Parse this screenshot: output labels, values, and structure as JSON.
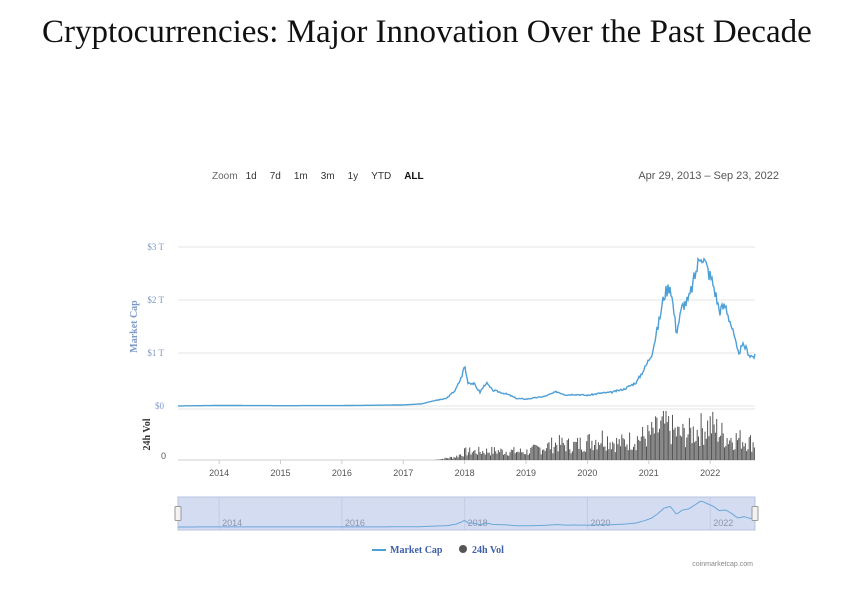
{
  "slide": {
    "title": "Cryptocurrencies: Major Innovation Over the Past Decade"
  },
  "toolbar": {
    "zoom_label": "Zoom",
    "buttons": [
      "1d",
      "7d",
      "1m",
      "3m",
      "1y",
      "YTD",
      "ALL"
    ],
    "active": "ALL"
  },
  "date_range": "Apr 29, 2013 – Sep 23, 2022",
  "credit": "coinmarketcap.com",
  "colors": {
    "market_cap": "#4e9fd6",
    "volume": "#555555",
    "navigator_bg": "#d4dcf2",
    "navigator_line": "#6aa6d8"
  },
  "chart_data": {
    "type": "area",
    "title": "",
    "ylabel": "Market Cap",
    "ylabel_secondary": "24h Vol",
    "yticks": [
      "$0",
      "$1 T",
      "$2 T",
      "$3 T"
    ],
    "ylim": [
      0,
      3
    ],
    "y2ticks": [
      "0"
    ],
    "xticks": [
      "2014",
      "2015",
      "2016",
      "2017",
      "2018",
      "2019",
      "2020",
      "2021",
      "2022"
    ],
    "xlim": [
      2013.33,
      2022.73
    ],
    "navigator_ticks": [
      "2014",
      "2016",
      "2018",
      "2020",
      "2022"
    ],
    "grid": true,
    "legend": "bottom-center",
    "series": [
      {
        "name": "Market Cap",
        "x": [
          2013.33,
          2014.0,
          2015.0,
          2016.0,
          2017.0,
          2017.3,
          2017.5,
          2017.7,
          2017.85,
          2017.95,
          2018.0,
          2018.05,
          2018.15,
          2018.25,
          2018.35,
          2018.45,
          2018.55,
          2018.7,
          2018.85,
          2019.0,
          2019.3,
          2019.5,
          2019.65,
          2019.8,
          2020.0,
          2020.2,
          2020.4,
          2020.6,
          2020.8,
          2020.95,
          2021.05,
          2021.15,
          2021.25,
          2021.35,
          2021.45,
          2021.55,
          2021.65,
          2021.75,
          2021.85,
          2021.95,
          2022.05,
          2022.15,
          2022.25,
          2022.35,
          2022.45,
          2022.55,
          2022.65,
          2022.73
        ],
        "values": [
          0.0015,
          0.01,
          0.006,
          0.008,
          0.02,
          0.04,
          0.1,
          0.14,
          0.3,
          0.55,
          0.77,
          0.45,
          0.42,
          0.26,
          0.44,
          0.3,
          0.27,
          0.22,
          0.14,
          0.13,
          0.18,
          0.27,
          0.21,
          0.22,
          0.2,
          0.24,
          0.26,
          0.32,
          0.45,
          0.75,
          1.0,
          1.5,
          2.1,
          2.3,
          1.4,
          1.9,
          2.0,
          2.45,
          2.9,
          2.6,
          2.3,
          1.8,
          1.9,
          1.5,
          1.0,
          1.15,
          0.95,
          0.93
        ]
      },
      {
        "name": "24h Vol",
        "x": [
          2013.33,
          2014.0,
          2015.0,
          2016.0,
          2017.0,
          2017.5,
          2017.85,
          2018.0,
          2018.5,
          2019.0,
          2019.25,
          2019.5,
          2019.75,
          2020.0,
          2020.25,
          2020.5,
          2020.75,
          2021.0,
          2021.25,
          2021.5,
          2021.75,
          2022.0,
          2022.25,
          2022.5,
          2022.73
        ],
        "values": [
          0,
          0,
          0,
          0,
          0,
          0,
          0.08,
          0.2,
          0.22,
          0.2,
          0.3,
          0.4,
          0.35,
          0.45,
          0.55,
          0.4,
          0.5,
          0.6,
          0.85,
          0.6,
          0.7,
          0.85,
          0.55,
          0.5,
          0.4
        ]
      }
    ]
  }
}
